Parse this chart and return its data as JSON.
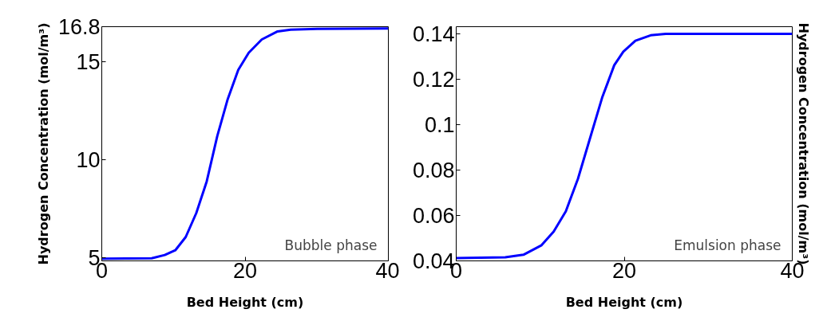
{
  "chart_data": [
    {
      "type": "line",
      "xlabel": "Bed Height (cm)",
      "ylabel": "Hydrogen Concentration (mol/m³)",
      "annotations": [
        "Bubble phase"
      ],
      "x": [
        0,
        6.96,
        8.79,
        10.26,
        11.72,
        13.19,
        14.65,
        16.12,
        17.58,
        19.05,
        20.51,
        22.34,
        24.54,
        26.37,
        30.04,
        40
      ],
      "series": [
        {
          "color": "#0000ff",
          "values": [
            4.95,
            4.97,
            5.14,
            5.38,
            6.06,
            7.28,
            8.9,
            11.21,
            13.1,
            14.59,
            15.47,
            16.15,
            16.56,
            16.65,
            16.69,
            16.71
          ]
        }
      ],
      "xlim": [
        0,
        40
      ],
      "xticks": [
        0,
        20,
        40
      ],
      "ylim": [
        4.84,
        16.8
      ],
      "yticks": [
        5,
        10,
        15,
        16.8
      ],
      "grid": false
    },
    {
      "type": "line",
      "xlabel": "Bed Height (cm)",
      "ylabel": "Hydrogen Concentration (mol/m³)",
      "annotations": [
        "Emulsion phase"
      ],
      "x": [
        0,
        5.84,
        8.0,
        10.16,
        11.6,
        13.05,
        14.49,
        15.93,
        17.37,
        18.81,
        19.89,
        21.33,
        23.14,
        24.94,
        40
      ],
      "series": [
        {
          "color": "#0000ff",
          "values": [
            0.0412,
            0.0416,
            0.0427,
            0.0469,
            0.0529,
            0.0619,
            0.0762,
            0.0941,
            0.112,
            0.1263,
            0.1323,
            0.1371,
            0.1395,
            0.1401,
            0.1401
          ]
        }
      ],
      "xlim": [
        0,
        40
      ],
      "xticks": [
        0,
        20,
        40
      ],
      "ylim": [
        0.04,
        0.1433
      ],
      "yticks": [
        0.04,
        0.06,
        0.08,
        0.1,
        0.12,
        0.14
      ],
      "grid": false
    }
  ]
}
